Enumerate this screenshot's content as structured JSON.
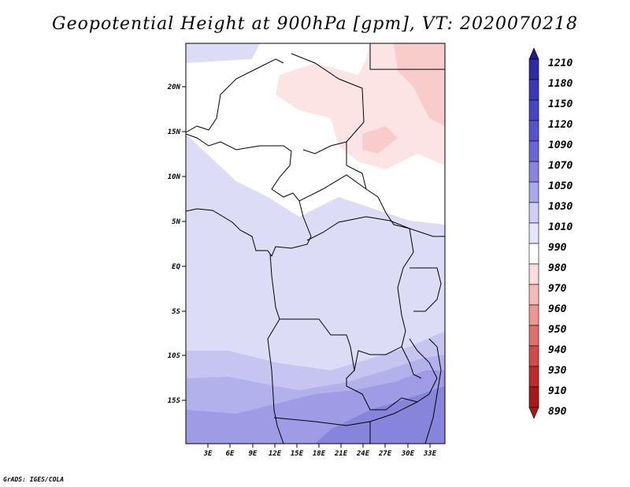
{
  "title": "Geopotential Height at 900hPa [gpm], VT: 2020070218",
  "credit": "GrADS: IGES/COLA",
  "map": {
    "lat_labels": [
      "20N",
      "15N",
      "10N",
      "5N",
      "EQ",
      "5S",
      "10S",
      "15S"
    ],
    "lon_labels": [
      "3E",
      "6E",
      "9E",
      "12E",
      "15E",
      "18E",
      "21E",
      "24E",
      "27E",
      "30E",
      "33E"
    ]
  },
  "colorbar": {
    "levels": [
      "1210",
      "1180",
      "1150",
      "1120",
      "1090",
      "1070",
      "1050",
      "1030",
      "1010",
      "990",
      "980",
      "970",
      "960",
      "950",
      "940",
      "930",
      "910",
      "890"
    ],
    "colors": [
      "#241a8c",
      "#2e2aa6",
      "#3a38b9",
      "#4545c6",
      "#5652cf",
      "#6a66d8",
      "#8884e0",
      "#aaa8ea",
      "#cfcff5",
      "#e6e6fa",
      "#ffffff",
      "#fcdcdc",
      "#f7baba",
      "#ee9595",
      "#e06f6f",
      "#d24b4b",
      "#bf2b2b",
      "#a81818"
    ]
  }
}
